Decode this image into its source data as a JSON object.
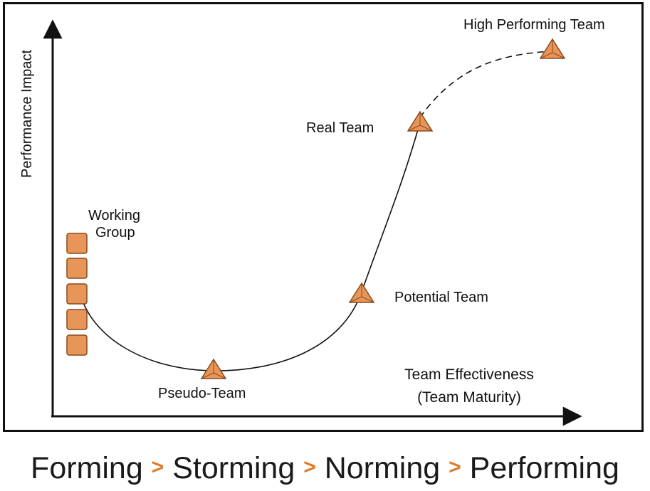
{
  "axes": {
    "y_label": "Performance Impact",
    "x_label_line1": "Team Effectiveness",
    "x_label_line2": "(Team Maturity)"
  },
  "stages_on_curve": {
    "working_group_line1": "Working",
    "working_group_line2": "Group",
    "pseudo_team": "Pseudo-Team",
    "potential_team": "Potential Team",
    "real_team": "Real Team",
    "high_performing_team": "High Performing Team"
  },
  "phases": [
    {
      "label": "Forming"
    },
    {
      "label": "Storming"
    },
    {
      "label": "Norming"
    },
    {
      "label": "Performing"
    }
  ],
  "separator": ">",
  "colors": {
    "marker_fill": "#e8955a",
    "marker_stroke": "#8a4a1a",
    "separator": "#e07b2a"
  }
}
